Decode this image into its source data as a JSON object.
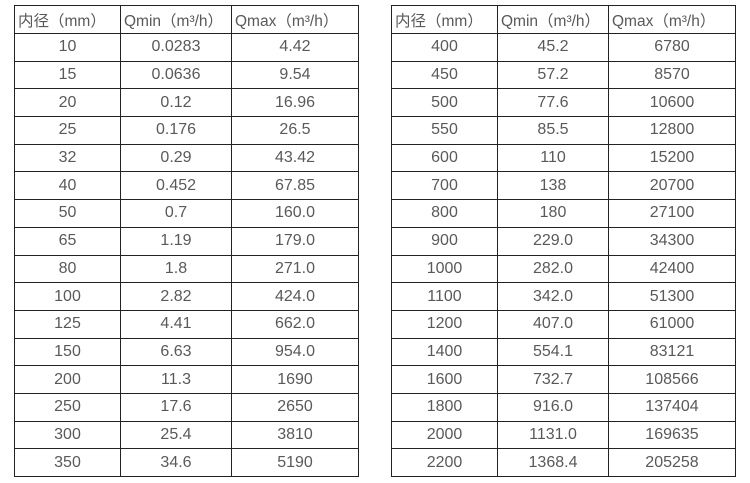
{
  "chart_data": [
    {
      "type": "table",
      "title": "",
      "columns": [
        "内径（mm）",
        "Qmin（m³/h）",
        "Qmax（m³/h）"
      ],
      "rows": [
        [
          "10",
          "0.0283",
          "4.42"
        ],
        [
          "15",
          "0.0636",
          "9.54"
        ],
        [
          "20",
          "0.12",
          "16.96"
        ],
        [
          "25",
          "0.176",
          "26.5"
        ],
        [
          "32",
          "0.29",
          "43.42"
        ],
        [
          "40",
          "0.452",
          "67.85"
        ],
        [
          "50",
          "0.7",
          "160.0"
        ],
        [
          "65",
          "1.19",
          "179.0"
        ],
        [
          "80",
          "1.8",
          "271.0"
        ],
        [
          "100",
          "2.82",
          "424.0"
        ],
        [
          "125",
          "4.41",
          "662.0"
        ],
        [
          "150",
          "6.63",
          "954.0"
        ],
        [
          "200",
          "11.3",
          "1690"
        ],
        [
          "250",
          "17.6",
          "2650"
        ],
        [
          "300",
          "25.4",
          "3810"
        ],
        [
          "350",
          "34.6",
          "5190"
        ]
      ]
    },
    {
      "type": "table",
      "title": "",
      "columns": [
        "内径（mm）",
        "Qmin（m³/h）",
        "Qmax（m³/h）"
      ],
      "rows": [
        [
          "400",
          "45.2",
          "6780"
        ],
        [
          "450",
          "57.2",
          "8570"
        ],
        [
          "500",
          "77.6",
          "10600"
        ],
        [
          "550",
          "85.5",
          "12800"
        ],
        [
          "600",
          "110",
          "15200"
        ],
        [
          "700",
          "138",
          "20700"
        ],
        [
          "800",
          "180",
          "27100"
        ],
        [
          "900",
          "229.0",
          "34300"
        ],
        [
          "1000",
          "282.0",
          "42400"
        ],
        [
          "1100",
          "342.0",
          "51300"
        ],
        [
          "1200",
          "407.0",
          "61000"
        ],
        [
          "1400",
          "554.1",
          "83121"
        ],
        [
          "1600",
          "732.7",
          "108566"
        ],
        [
          "1800",
          "916.0",
          "137404"
        ],
        [
          "2000",
          "1131.0",
          "169635"
        ],
        [
          "2200",
          "1368.4",
          "205258"
        ]
      ]
    }
  ],
  "colors": {
    "background": "#ffffff",
    "border": "#222222",
    "text": "#595959"
  }
}
